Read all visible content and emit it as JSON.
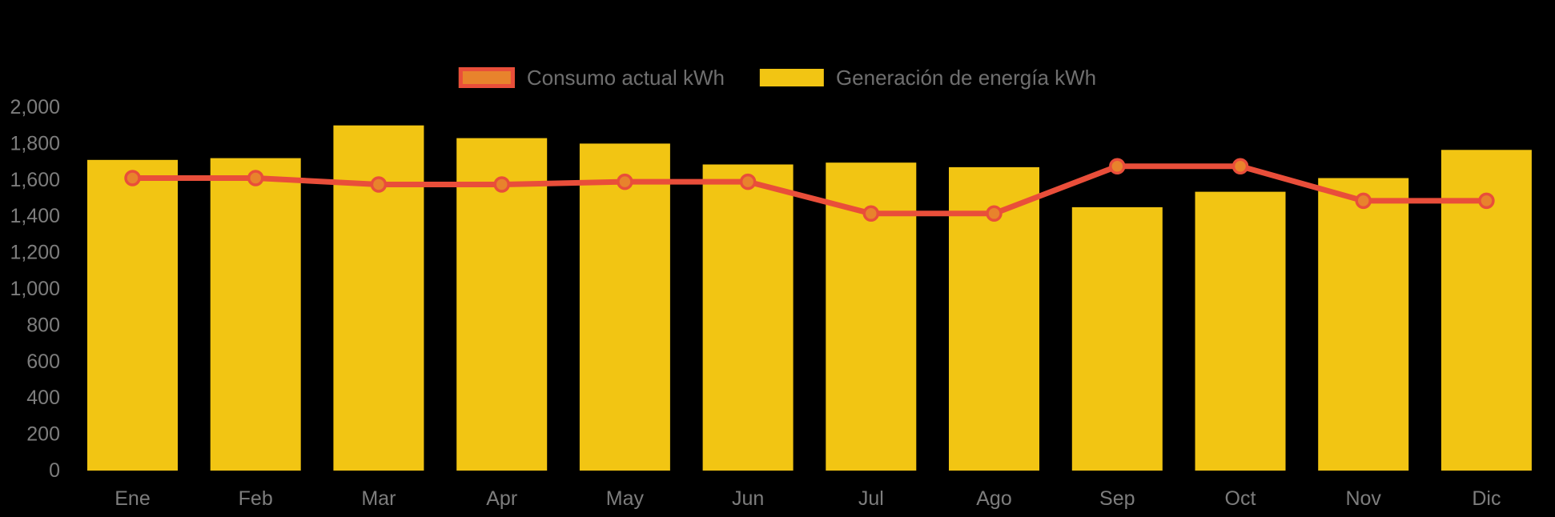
{
  "chart": {
    "background": "#000000",
    "title": "",
    "legend": [
      {
        "id": "consumo",
        "label": "Consumo actual kWh",
        "swatch": "line-swatch",
        "swatch_fill": "#E8832C",
        "swatch_border": "#E94E3A"
      },
      {
        "id": "generacion",
        "label": "Generación de energía kWh",
        "swatch": "bar-swatch",
        "swatch_fill": "#F2C513",
        "swatch_border": ""
      }
    ],
    "colors": {
      "bar": "#F2C513",
      "line": "#E94E3A",
      "marker_fill": "#E8832C",
      "marker_stroke": "#E94E3A",
      "axis_text": "#7d7d7d",
      "legend_text": "#6f6f6f"
    }
  },
  "chart_data": {
    "type": "combo",
    "categories": [
      "Ene",
      "Feb",
      "Mar",
      "Apr",
      "May",
      "Jun",
      "Jul",
      "Ago",
      "Sep",
      "Oct",
      "Nov",
      "Dic"
    ],
    "series": [
      {
        "name": "Generación de energía kWh",
        "type": "bar",
        "color": "#F2C513",
        "values": [
          1710,
          1720,
          1900,
          1830,
          1800,
          1685,
          1695,
          1670,
          1450,
          1535,
          1610,
          1765
        ]
      },
      {
        "name": "Consumo actual kWh",
        "type": "line",
        "color": "#E94E3A",
        "values": [
          1610,
          1610,
          1575,
          1575,
          1590,
          1590,
          1415,
          1415,
          1675,
          1675,
          1485,
          1485
        ]
      }
    ],
    "xlabel": "",
    "ylabel": "",
    "ylim": [
      0,
      2000
    ],
    "ytick_interval": 200,
    "ytick_labels": [
      "0",
      "200",
      "400",
      "600",
      "800",
      "1,000",
      "1,200",
      "1,400",
      "1,600",
      "1,800",
      "2,000"
    ],
    "grid": false,
    "legend_position": "top-center"
  }
}
